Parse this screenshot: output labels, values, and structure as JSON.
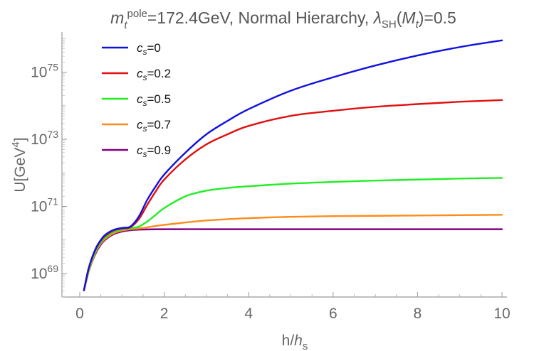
{
  "chart_data": {
    "type": "line",
    "title": {
      "prefix": "m",
      "prefix_sub": "t",
      "prefix_sup": "pole",
      "text": "=172.4GeV, Normal Hierarchy, ",
      "lambda": "λ",
      "lambda_sub": "SH",
      "arg_open": "(",
      "arg": "M",
      "arg_sub": "t",
      "arg_close": ")=0.5"
    },
    "xlabel": {
      "text": "h/",
      "italic": "h",
      "sub": "s"
    },
    "ylabel": {
      "text": "U[GeV",
      "sup": "4",
      "close": "]"
    },
    "xlim": [
      0,
      10
    ],
    "ylim_log10": [
      68.3,
      76.2
    ],
    "y_scale": "log",
    "grid": false,
    "legend_position": "top-left",
    "x_ticks": [
      0,
      2,
      4,
      6,
      8,
      10
    ],
    "y_ticks": [
      {
        "base": "10",
        "exp": "69",
        "log10": 69
      },
      {
        "base": "10",
        "exp": "71",
        "log10": 71
      },
      {
        "base": "10",
        "exp": "73",
        "log10": 73
      },
      {
        "base": "10",
        "exp": "75",
        "log10": 75
      }
    ],
    "series": [
      {
        "name": "c_s=0",
        "label_var": "c",
        "label_sub": "s",
        "label_value": "=0",
        "color": "#1010e0",
        "x": [
          0.1,
          0.2,
          0.3,
          0.4,
          0.5,
          0.6,
          0.8,
          1.0,
          1.2,
          1.4,
          1.6,
          1.8,
          2.0,
          2.5,
          3.0,
          3.5,
          4.0,
          5.0,
          6.0,
          7.0,
          8.0,
          9.0,
          10.0
        ],
        "log10_y": [
          68.5,
          69.1,
          69.5,
          69.8,
          70.0,
          70.15,
          70.3,
          70.36,
          70.4,
          70.7,
          71.2,
          71.6,
          71.95,
          72.6,
          73.15,
          73.55,
          73.9,
          74.45,
          74.85,
          75.2,
          75.5,
          75.75,
          75.95
        ]
      },
      {
        "name": "c_s=0.2",
        "label_var": "c",
        "label_sub": "s",
        "label_value": "=0.2",
        "color": "#e01010",
        "x": [
          0.1,
          0.2,
          0.3,
          0.4,
          0.5,
          0.6,
          0.8,
          1.0,
          1.2,
          1.4,
          1.6,
          1.8,
          2.0,
          2.5,
          3.0,
          3.5,
          4.0,
          5.0,
          6.0,
          7.0,
          8.0,
          9.0,
          10.0
        ],
        "log10_y": [
          68.5,
          69.1,
          69.5,
          69.78,
          69.98,
          70.12,
          70.28,
          70.34,
          70.38,
          70.62,
          71.05,
          71.45,
          71.8,
          72.4,
          72.85,
          73.15,
          73.4,
          73.7,
          73.85,
          73.97,
          74.05,
          74.12,
          74.17
        ]
      },
      {
        "name": "c_s=0.5",
        "label_var": "c",
        "label_sub": "s",
        "label_value": "=0.5",
        "color": "#22ee22",
        "x": [
          0.1,
          0.2,
          0.3,
          0.4,
          0.5,
          0.6,
          0.8,
          1.0,
          1.2,
          1.4,
          1.6,
          1.8,
          2.0,
          2.5,
          3.0,
          3.5,
          4.0,
          5.0,
          6.0,
          7.0,
          8.0,
          9.0,
          10.0
        ],
        "log10_y": [
          68.5,
          69.05,
          69.45,
          69.73,
          69.93,
          70.07,
          70.24,
          70.31,
          70.35,
          70.4,
          70.55,
          70.75,
          70.95,
          71.3,
          71.47,
          71.55,
          71.6,
          71.68,
          71.73,
          71.77,
          71.8,
          71.83,
          71.85
        ]
      },
      {
        "name": "c_s=0.7",
        "label_var": "c",
        "label_sub": "s",
        "label_value": "=0.7",
        "color": "#ff8c1a",
        "x": [
          0.1,
          0.2,
          0.3,
          0.4,
          0.5,
          0.6,
          0.8,
          1.0,
          1.2,
          1.5,
          2.0,
          3.0,
          4.0,
          5.0,
          6.0,
          7.0,
          8.0,
          9.0,
          10.0
        ],
        "log10_y": [
          68.5,
          69.0,
          69.4,
          69.7,
          69.9,
          70.03,
          70.2,
          70.28,
          70.32,
          70.36,
          70.45,
          70.58,
          70.65,
          70.69,
          70.71,
          70.72,
          70.73,
          70.74,
          70.75
        ]
      },
      {
        "name": "c_s=0.9",
        "label_var": "c",
        "label_sub": "s",
        "label_value": "=0.9",
        "color": "#800080",
        "x": [
          0.1,
          0.2,
          0.3,
          0.4,
          0.5,
          0.6,
          0.8,
          1.0,
          1.2,
          1.5,
          2.0,
          3.0,
          4.0,
          6.0,
          8.0,
          10.0
        ],
        "log10_y": [
          68.5,
          69.0,
          69.38,
          69.66,
          69.86,
          70.0,
          70.17,
          70.25,
          70.29,
          70.31,
          70.32,
          70.32,
          70.32,
          70.32,
          70.32,
          70.32
        ]
      }
    ]
  }
}
